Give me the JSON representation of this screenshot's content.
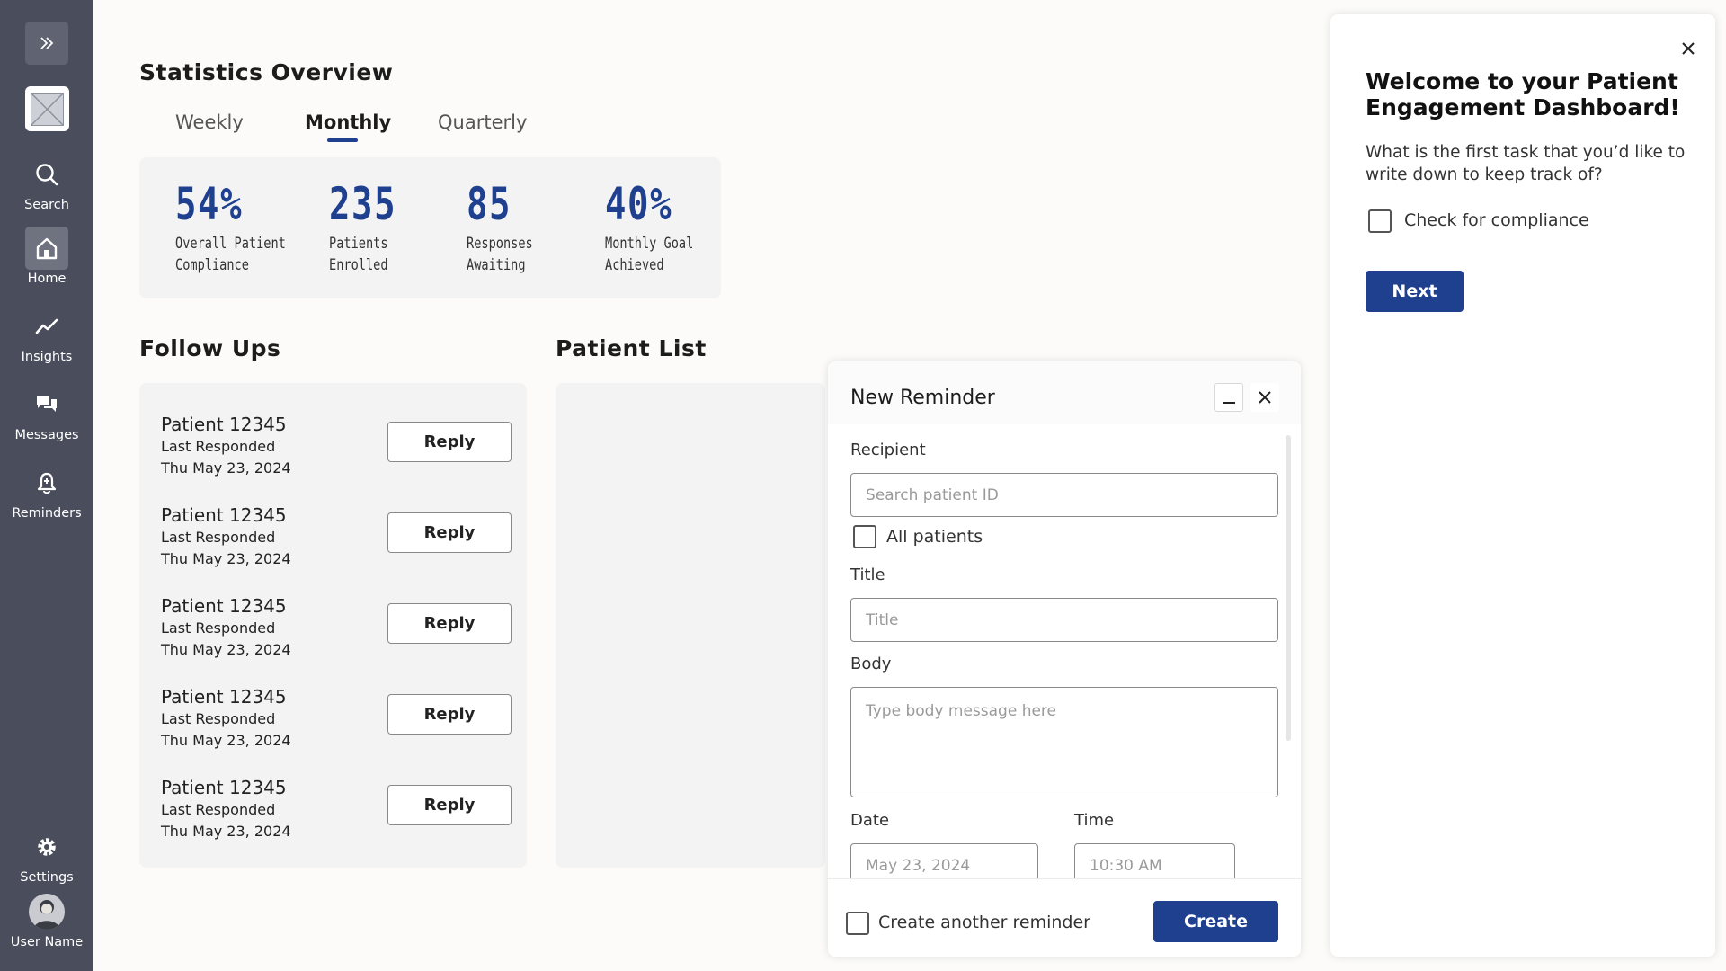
{
  "sidebar": {
    "items": [
      {
        "label": "Search",
        "icon": "search-icon"
      },
      {
        "label": "Home",
        "icon": "home-icon",
        "active": true
      },
      {
        "label": "Insights",
        "icon": "trend-icon"
      },
      {
        "label": "Messages",
        "icon": "chat-icon"
      },
      {
        "label": "Reminders",
        "icon": "bell-icon"
      }
    ],
    "settings_label": "Settings",
    "user_name": "User Name"
  },
  "stats": {
    "title": "Statistics Overview",
    "tabs": [
      "Weekly",
      "Monthly",
      "Quarterly"
    ],
    "active_tab": "Monthly",
    "cards": [
      {
        "value": "54%",
        "label_line1": "Overall Patient",
        "label_line2": "Compliance"
      },
      {
        "value": "235",
        "label_line1": "Patients",
        "label_line2": "Enrolled"
      },
      {
        "value": "85",
        "label_line1": "Responses",
        "label_line2": "Awaiting"
      },
      {
        "value": "40%",
        "label_line1": "Monthly Goal",
        "label_line2": "Achieved"
      }
    ]
  },
  "followups": {
    "title": "Follow Ups",
    "items": [
      {
        "name": "Patient 12345",
        "sub1": "Last Responded",
        "sub2": "Thu May 23, 2024",
        "button": "Reply"
      },
      {
        "name": "Patient 12345",
        "sub1": "Last Responded",
        "sub2": "Thu May 23, 2024",
        "button": "Reply"
      },
      {
        "name": "Patient 12345",
        "sub1": "Last Responded",
        "sub2": "Thu May 23, 2024",
        "button": "Reply"
      },
      {
        "name": "Patient 12345",
        "sub1": "Last Responded",
        "sub2": "Thu May 23, 2024",
        "button": "Reply"
      },
      {
        "name": "Patient 12345",
        "sub1": "Last Responded",
        "sub2": "Thu May 23, 2024",
        "button": "Reply"
      }
    ]
  },
  "patient_list": {
    "title": "Patient List"
  },
  "reminder": {
    "title": "New Reminder",
    "recipient_label": "Recipient",
    "recipient_placeholder": "Search patient ID",
    "all_patients_label": "All patients",
    "title_label": "Title",
    "title_placeholder": "Title",
    "body_label": "Body",
    "body_placeholder": "Type body message here",
    "date_label": "Date",
    "date_placeholder": "May 23, 2024",
    "time_label": "Time",
    "time_placeholder": "10:30 AM",
    "create_another_label": "Create another reminder",
    "create_button": "Create"
  },
  "welcome": {
    "title": "Welcome to your Patient Engagement Dashboard!",
    "question": "What is the first task that you’d like to write down to keep track of?",
    "checkbox_label": "Check for compliance",
    "next_button": "Next"
  },
  "colors": {
    "sidebar": "#4a4e5c",
    "accent": "#1f3f8f",
    "card": "#f3f3f3"
  }
}
